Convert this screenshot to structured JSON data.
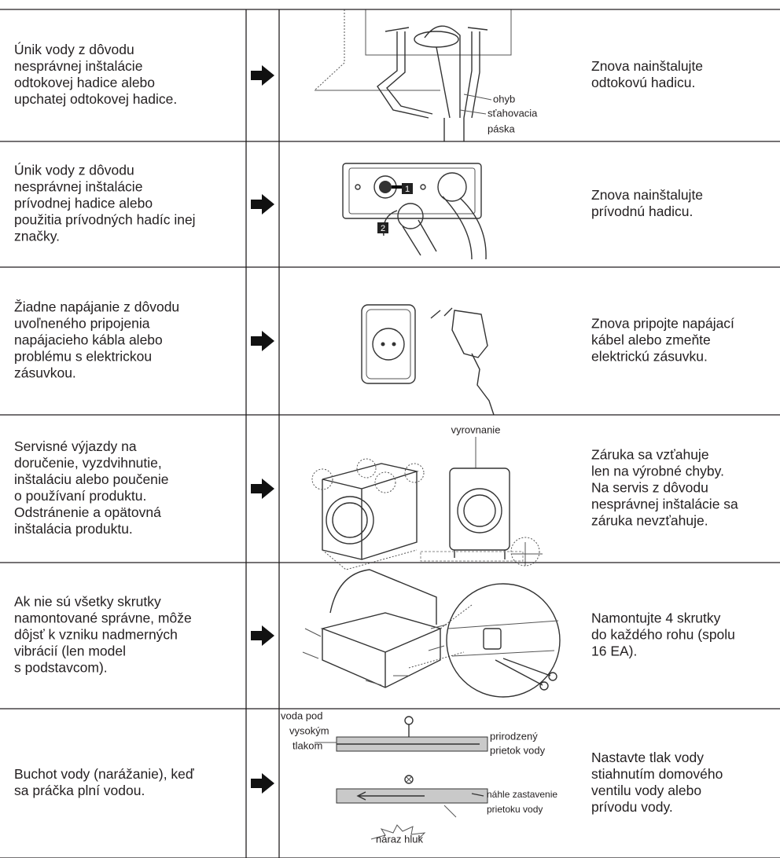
{
  "rows": [
    {
      "problem": [
        "Únik vody z dôvodu",
        "nesprávnej inštalácie",
        "odtokovej hadice alebo",
        "upchatej odtokovej hadice."
      ],
      "labels": [
        "ohyb",
        "sťahovacia",
        "páska"
      ],
      "solution": [
        "Znova nainštalujte",
        "odtokovú hadicu."
      ]
    },
    {
      "problem": [
        "Únik vody z dôvodu",
        "nesprávnej inštalácie",
        "prívodnej hadice alebo",
        "použitia prívodných hadíc inej",
        "značky."
      ],
      "labels": [
        "1",
        "2"
      ],
      "solution": [
        "Znova nainštalujte",
        "prívodnú hadicu."
      ]
    },
    {
      "problem": [
        "Žiadne napájanie z dôvodu",
        "uvoľneného pripojenia",
        "napájacieho kábla alebo",
        "problému s elektrickou",
        "zásuvkou."
      ],
      "labels": [],
      "solution": [
        "Znova pripojte napájací",
        "kábel alebo zmeňte",
        "elektrickú zásuvku."
      ]
    },
    {
      "problem": [
        "Servisné výjazdy na",
        "doručenie, vyzdvihnutie,",
        "inštaláciu alebo poučenie",
        "o používaní produktu.",
        "Odstránenie a opätovná",
        "inštalácia produktu."
      ],
      "labels": [
        "vyrovnanie"
      ],
      "solution": [
        "Záruka sa vzťahuje",
        "len na výrobné chyby.",
        "Na servis z dôvodu",
        "nesprávnej inštalácie sa",
        "záruka nevzťahuje."
      ]
    },
    {
      "problem": [
        "Ak nie sú všetky skrutky",
        "namontované správne, môže",
        "dôjsť k vzniku nadmerných",
        "vibrácií (len model",
        "s podstavcom)."
      ],
      "labels": [],
      "solution": [
        "Namontujte 4 skrutky",
        "do každého rohu (spolu",
        "16 EA)."
      ]
    },
    {
      "problem": [
        "Buchot vody (narážanie), keď",
        "sa práčka plní vodou."
      ],
      "labels": [
        "voda pod",
        "vysokým",
        "tlakom",
        "prirodzený",
        "prietok vody",
        "náhle zastavenie",
        "prietoku vody",
        "náraz hluk"
      ],
      "solution": [
        "Nastavte tlak vody",
        "stiahnutím domového",
        "ventilu vody alebo",
        "prívodu vody."
      ]
    }
  ]
}
